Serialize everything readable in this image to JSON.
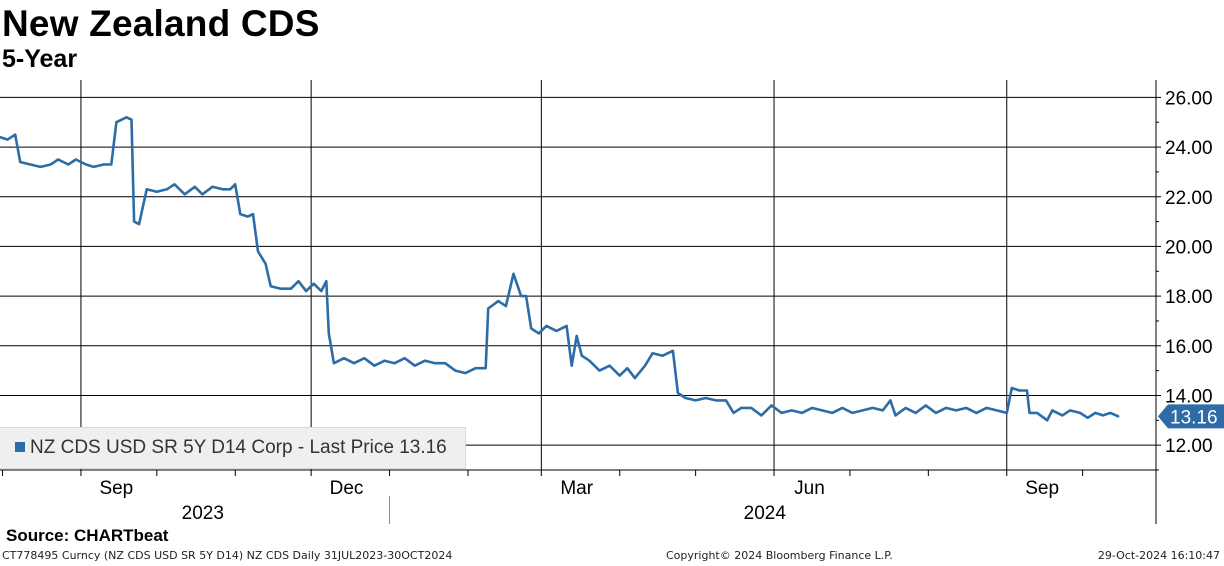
{
  "header": {
    "title": "New Zealand CDS",
    "subtitle": "5-Year"
  },
  "legend": {
    "label": "NZ CDS USD SR 5Y D14 Corp - Last Price 13.16",
    "color": "#2e6ca8"
  },
  "source": "Source: CHARTbeat",
  "footer": {
    "left": "CT778495 Curncy (NZ CDS USD SR 5Y D14) NZ CDS  Daily 31JUL2023-30OCT2024",
    "center": "Copyright© 2024 Bloomberg Finance L.P.",
    "right": "29-Oct-2024 16:10:47"
  },
  "chart_data": {
    "type": "line",
    "title": "New Zealand CDS",
    "subtitle": "5-Year",
    "x_range": [
      "2023-07-31",
      "2024-10-30"
    ],
    "ylim": [
      11.0,
      26.7
    ],
    "y_ticks": [
      "12.00",
      "14.00",
      "16.00",
      "18.00",
      "20.00",
      "22.00",
      "24.00",
      "26.00"
    ],
    "x_month_labels": [
      "Sep",
      "Dec",
      "Mar",
      "Jun",
      "Sep"
    ],
    "x_year_labels": [
      "2023",
      "2024"
    ],
    "grid": true,
    "legend_position": "bottom-left",
    "last_value": 13.16,
    "last_value_label": "13.16",
    "series": [
      {
        "name": "NZ CDS USD SR 5Y D14 Corp - Last Price 13.16",
        "color": "#2e6ca8",
        "points": [
          [
            "2023-07-31",
            24.4
          ],
          [
            "2023-08-03",
            24.3
          ],
          [
            "2023-08-06",
            24.5
          ],
          [
            "2023-08-08",
            23.4
          ],
          [
            "2023-08-12",
            23.3
          ],
          [
            "2023-08-16",
            23.2
          ],
          [
            "2023-08-20",
            23.3
          ],
          [
            "2023-08-23",
            23.5
          ],
          [
            "2023-08-27",
            23.3
          ],
          [
            "2023-08-30",
            23.5
          ],
          [
            "2023-09-03",
            23.3
          ],
          [
            "2023-09-06",
            23.2
          ],
          [
            "2023-09-10",
            23.3
          ],
          [
            "2023-09-13",
            23.3
          ],
          [
            "2023-09-15",
            25.0
          ],
          [
            "2023-09-19",
            25.2
          ],
          [
            "2023-09-21",
            25.1
          ],
          [
            "2023-09-22",
            21.0
          ],
          [
            "2023-09-24",
            20.9
          ],
          [
            "2023-09-27",
            22.3
          ],
          [
            "2023-10-01",
            22.2
          ],
          [
            "2023-10-05",
            22.3
          ],
          [
            "2023-10-08",
            22.5
          ],
          [
            "2023-10-12",
            22.1
          ],
          [
            "2023-10-16",
            22.4
          ],
          [
            "2023-10-19",
            22.1
          ],
          [
            "2023-10-23",
            22.4
          ],
          [
            "2023-10-27",
            22.3
          ],
          [
            "2023-10-30",
            22.3
          ],
          [
            "2023-11-01",
            22.5
          ],
          [
            "2023-11-03",
            21.3
          ],
          [
            "2023-11-06",
            21.2
          ],
          [
            "2023-11-08",
            21.3
          ],
          [
            "2023-11-10",
            19.8
          ],
          [
            "2023-11-13",
            19.3
          ],
          [
            "2023-11-15",
            18.4
          ],
          [
            "2023-11-19",
            18.3
          ],
          [
            "2023-11-23",
            18.3
          ],
          [
            "2023-11-26",
            18.6
          ],
          [
            "2023-11-29",
            18.2
          ],
          [
            "2023-12-02",
            18.5
          ],
          [
            "2023-12-05",
            18.2
          ],
          [
            "2023-12-07",
            18.6
          ],
          [
            "2023-12-08",
            16.5
          ],
          [
            "2023-12-10",
            15.3
          ],
          [
            "2023-12-14",
            15.5
          ],
          [
            "2023-12-18",
            15.3
          ],
          [
            "2023-12-22",
            15.5
          ],
          [
            "2023-12-26",
            15.2
          ],
          [
            "2023-12-30",
            15.4
          ],
          [
            "2024-01-03",
            15.3
          ],
          [
            "2024-01-07",
            15.5
          ],
          [
            "2024-01-11",
            15.2
          ],
          [
            "2024-01-15",
            15.4
          ],
          [
            "2024-01-19",
            15.3
          ],
          [
            "2024-01-23",
            15.3
          ],
          [
            "2024-01-27",
            15.0
          ],
          [
            "2024-01-31",
            14.9
          ],
          [
            "2024-02-04",
            15.1
          ],
          [
            "2024-02-08",
            15.1
          ],
          [
            "2024-02-09",
            17.5
          ],
          [
            "2024-02-13",
            17.8
          ],
          [
            "2024-02-16",
            17.6
          ],
          [
            "2024-02-19",
            18.9
          ],
          [
            "2024-02-22",
            18.0
          ],
          [
            "2024-02-24",
            18.0
          ],
          [
            "2024-02-26",
            16.7
          ],
          [
            "2024-02-29",
            16.5
          ],
          [
            "2024-03-03",
            16.8
          ],
          [
            "2024-03-07",
            16.6
          ],
          [
            "2024-03-11",
            16.8
          ],
          [
            "2024-03-13",
            15.2
          ],
          [
            "2024-03-15",
            16.4
          ],
          [
            "2024-03-17",
            15.6
          ],
          [
            "2024-03-20",
            15.4
          ],
          [
            "2024-03-24",
            15.0
          ],
          [
            "2024-03-28",
            15.2
          ],
          [
            "2024-04-01",
            14.8
          ],
          [
            "2024-04-04",
            15.1
          ],
          [
            "2024-04-07",
            14.7
          ],
          [
            "2024-04-11",
            15.2
          ],
          [
            "2024-04-14",
            15.7
          ],
          [
            "2024-04-18",
            15.6
          ],
          [
            "2024-04-22",
            15.8
          ],
          [
            "2024-04-24",
            14.1
          ],
          [
            "2024-04-27",
            13.9
          ],
          [
            "2024-05-01",
            13.8
          ],
          [
            "2024-05-05",
            13.9
          ],
          [
            "2024-05-09",
            13.8
          ],
          [
            "2024-05-13",
            13.8
          ],
          [
            "2024-05-16",
            13.3
          ],
          [
            "2024-05-19",
            13.5
          ],
          [
            "2024-05-23",
            13.5
          ],
          [
            "2024-05-27",
            13.2
          ],
          [
            "2024-05-31",
            13.6
          ],
          [
            "2024-06-04",
            13.3
          ],
          [
            "2024-06-08",
            13.4
          ],
          [
            "2024-06-12",
            13.3
          ],
          [
            "2024-06-16",
            13.5
          ],
          [
            "2024-06-20",
            13.4
          ],
          [
            "2024-06-24",
            13.3
          ],
          [
            "2024-06-28",
            13.5
          ],
          [
            "2024-07-02",
            13.3
          ],
          [
            "2024-07-06",
            13.4
          ],
          [
            "2024-07-10",
            13.5
          ],
          [
            "2024-07-14",
            13.4
          ],
          [
            "2024-07-17",
            13.8
          ],
          [
            "2024-07-19",
            13.2
          ],
          [
            "2024-07-23",
            13.5
          ],
          [
            "2024-07-27",
            13.3
          ],
          [
            "2024-07-31",
            13.6
          ],
          [
            "2024-08-04",
            13.3
          ],
          [
            "2024-08-08",
            13.5
          ],
          [
            "2024-08-12",
            13.4
          ],
          [
            "2024-08-16",
            13.5
          ],
          [
            "2024-08-20",
            13.3
          ],
          [
            "2024-08-24",
            13.5
          ],
          [
            "2024-08-28",
            13.4
          ],
          [
            "2024-09-01",
            13.3
          ],
          [
            "2024-09-03",
            14.3
          ],
          [
            "2024-09-06",
            14.2
          ],
          [
            "2024-09-09",
            14.2
          ],
          [
            "2024-09-10",
            13.3
          ],
          [
            "2024-09-13",
            13.3
          ],
          [
            "2024-09-17",
            13.0
          ],
          [
            "2024-09-19",
            13.4
          ],
          [
            "2024-09-23",
            13.2
          ],
          [
            "2024-09-26",
            13.4
          ],
          [
            "2024-09-30",
            13.3
          ],
          [
            "2024-10-03",
            13.1
          ],
          [
            "2024-10-06",
            13.3
          ],
          [
            "2024-10-09",
            13.2
          ],
          [
            "2024-10-12",
            13.3
          ],
          [
            "2024-10-15",
            13.16
          ]
        ]
      }
    ]
  }
}
